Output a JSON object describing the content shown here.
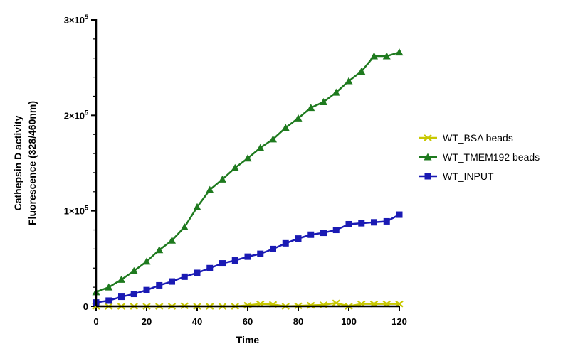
{
  "chart_data": {
    "type": "line",
    "xlabel": "Time",
    "ylabel": [
      "Cathepsin D activity",
      "Fluorescence (328/460nm)"
    ],
    "xlim": [
      0,
      120
    ],
    "ylim": [
      0,
      300000
    ],
    "x_ticks": [
      0,
      20,
      40,
      60,
      80,
      100,
      120
    ],
    "x_tick_labels": [
      "0",
      "20",
      "40",
      "60",
      "80",
      "100",
      "120"
    ],
    "y_ticks": [
      {
        "value": 0,
        "mantissa": "0",
        "exponent": ""
      },
      {
        "value": 100000,
        "mantissa": "1×10",
        "exponent": "5"
      },
      {
        "value": 200000,
        "mantissa": "2×10",
        "exponent": "5"
      },
      {
        "value": 300000,
        "mantissa": "3×10",
        "exponent": "5"
      }
    ],
    "y_minor_step": 20000,
    "grid": false,
    "legend_position": "right",
    "x": [
      0,
      5,
      10,
      15,
      20,
      25,
      30,
      35,
      40,
      45,
      50,
      55,
      60,
      65,
      70,
      75,
      80,
      85,
      90,
      95,
      100,
      105,
      110,
      115,
      120
    ],
    "series": [
      {
        "name": "WT_BSA beads",
        "color": "#c8c800",
        "marker": "x",
        "values": [
          0,
          0,
          0,
          0,
          0,
          0,
          0,
          500,
          0,
          0,
          0,
          0,
          1000,
          2500,
          2000,
          0,
          500,
          1000,
          1500,
          3500,
          0,
          2500,
          2500,
          2500,
          2500
        ]
      },
      {
        "name": "WT_TMEM192 beads",
        "color": "#1e7a1e",
        "marker": "triangle",
        "values": [
          15000,
          20000,
          28000,
          37000,
          47000,
          59000,
          69000,
          83000,
          104000,
          122000,
          133000,
          145000,
          155000,
          166000,
          175000,
          187000,
          197000,
          208000,
          214000,
          224000,
          236000,
          246000,
          262000,
          262000,
          266000
        ]
      },
      {
        "name": "WT_INPUT",
        "color": "#1a1ab4",
        "marker": "square",
        "values": [
          4000,
          6000,
          10000,
          13000,
          17000,
          22000,
          26000,
          31000,
          35000,
          40000,
          45000,
          48000,
          52000,
          55000,
          60000,
          66000,
          71000,
          75000,
          77000,
          80000,
          86000,
          87000,
          88000,
          89000,
          96000
        ]
      }
    ]
  }
}
